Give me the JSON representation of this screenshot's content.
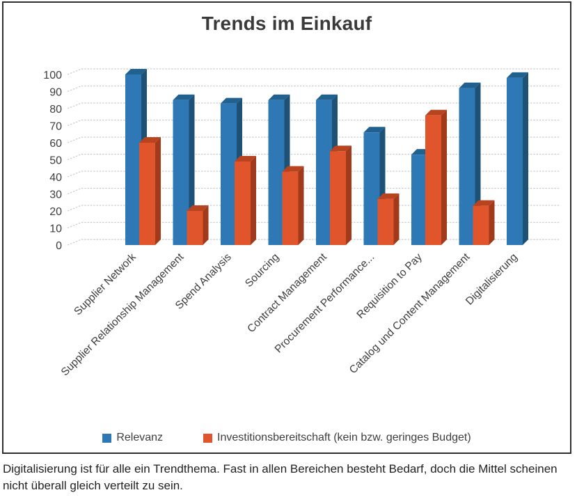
{
  "chart_title": "Trends im Einkauf",
  "chart_data": {
    "type": "bar",
    "style": "pseudo-3d-column",
    "title": "Trends im Einkauf",
    "categories": [
      "Supplier Network",
      "Supplier Relationship Management",
      "Spend Analysis",
      "Sourcing",
      "Contract Management",
      "Procurement Performance...",
      "Requisition to Pay",
      "Catalog und Content Management",
      "Digitalisierung"
    ],
    "series": [
      {
        "name": "Relevanz",
        "color": "#2E79B5",
        "color_top": "#20618F",
        "color_side": "#1D5175",
        "values": [
          100,
          85,
          83,
          85,
          85,
          66,
          53,
          92,
          98
        ]
      },
      {
        "name": "Investitionsbereitschaft (kein bzw. geringes Budget)",
        "color": "#E0552B",
        "color_top": "#B8431F",
        "color_side": "#A03A1B",
        "values": [
          60,
          20,
          49,
          43,
          55,
          27,
          76,
          23,
          0
        ]
      }
    ],
    "ylim": [
      0,
      100
    ],
    "ytick_step": 10,
    "yticks": [
      0,
      10,
      20,
      30,
      40,
      50,
      60,
      70,
      80,
      90,
      100
    ],
    "grid": true,
    "gridline_color": "#cccccc",
    "text_color": "#3d3d3d",
    "legend_position": "bottom"
  },
  "caption": "Digitalisierung ist für alle ein Trendthema. Fast in allen Bereichen besteht Bedarf, doch die Mittel scheinen nicht überall gleich verteilt zu sein."
}
